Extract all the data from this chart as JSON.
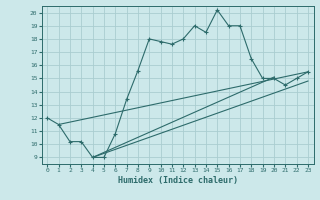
{
  "xlabel": "Humidex (Indice chaleur)",
  "ylabel": "",
  "bg_color": "#cce8ea",
  "grid_color": "#aacdd0",
  "line_color": "#2d6b6b",
  "xlim": [
    -0.5,
    23.5
  ],
  "ylim": [
    8.5,
    20.5
  ],
  "xticks": [
    0,
    1,
    2,
    3,
    4,
    5,
    6,
    7,
    8,
    9,
    10,
    11,
    12,
    13,
    14,
    15,
    16,
    17,
    18,
    19,
    20,
    21,
    22,
    23
  ],
  "yticks": [
    9,
    10,
    11,
    12,
    13,
    14,
    15,
    16,
    17,
    18,
    19,
    20
  ],
  "main_x": [
    0,
    1,
    2,
    3,
    4,
    5,
    6,
    7,
    8,
    9,
    10,
    11,
    12,
    13,
    14,
    15,
    16,
    17,
    18,
    19,
    20,
    21,
    22,
    23
  ],
  "main_y": [
    12,
    11.5,
    10.2,
    10.2,
    9.0,
    9.0,
    10.8,
    13.4,
    15.6,
    18.0,
    17.8,
    17.6,
    18.0,
    19.0,
    18.5,
    20.2,
    19.0,
    19.0,
    16.5,
    15.0,
    15.0,
    14.5,
    15.0,
    15.5
  ],
  "line2_x": [
    1,
    23
  ],
  "line2_y": [
    11.5,
    15.5
  ],
  "line3_x": [
    4,
    20
  ],
  "line3_y": [
    9.0,
    15.1
  ],
  "line4_x": [
    4,
    23
  ],
  "line4_y": [
    9.0,
    14.8
  ]
}
